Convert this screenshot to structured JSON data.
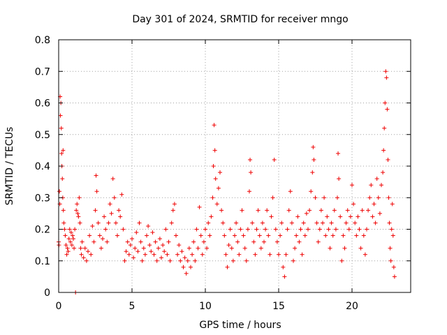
{
  "chart_data": {
    "type": "scatter",
    "title": "Day 301 of 2024, SRMTID for receiver mngo",
    "xlabel": "GPS time / hours",
    "ylabel": "SRMTID / TECUs",
    "xlim": [
      0,
      24
    ],
    "ylim": [
      0,
      0.8
    ],
    "x_ticks": [
      0,
      5,
      10,
      15,
      20
    ],
    "x_tick_labels": [
      "0",
      "5",
      "10",
      "15",
      "20"
    ],
    "y_ticks": [
      0,
      0.1,
      0.2,
      0.3,
      0.4,
      0.5,
      0.6,
      0.7,
      0.8
    ],
    "y_tick_labels": [
      "0",
      "0.1",
      "0.2",
      "0.3",
      "0.4",
      "0.5",
      "0.6",
      "0.7",
      "0.8"
    ],
    "grid": true,
    "marker": "+",
    "color": "#ee0000",
    "series": [
      {
        "name": "SRMTID",
        "points": [
          [
            0.0,
            0.16
          ],
          [
            0.02,
            0.15
          ],
          [
            0.05,
            0.32
          ],
          [
            0.08,
            0.28
          ],
          [
            0.1,
            0.62
          ],
          [
            0.12,
            0.56
          ],
          [
            0.15,
            0.6
          ],
          [
            0.18,
            0.52
          ],
          [
            0.2,
            0.44
          ],
          [
            0.22,
            0.4
          ],
          [
            0.25,
            0.36
          ],
          [
            0.28,
            0.3
          ],
          [
            0.3,
            0.45
          ],
          [
            0.32,
            0.26
          ],
          [
            0.35,
            0.22
          ],
          [
            0.4,
            0.2
          ],
          [
            0.45,
            0.18
          ],
          [
            0.5,
            0.15
          ],
          [
            0.55,
            0.12
          ],
          [
            0.6,
            0.14
          ],
          [
            0.65,
            0.13
          ],
          [
            0.7,
            0.17
          ],
          [
            0.75,
            0.2
          ],
          [
            0.8,
            0.16
          ],
          [
            0.85,
            0.19
          ],
          [
            0.9,
            0.15
          ],
          [
            0.95,
            0.18
          ],
          [
            1.0,
            0.17
          ],
          [
            1.05,
            0.14
          ],
          [
            1.1,
            0.2
          ],
          [
            1.15,
            0.0
          ],
          [
            1.2,
            0.26
          ],
          [
            1.25,
            0.28
          ],
          [
            1.3,
            0.25
          ],
          [
            1.35,
            0.24
          ],
          [
            1.4,
            0.3
          ],
          [
            1.45,
            0.22
          ],
          [
            1.5,
            0.14
          ],
          [
            1.55,
            0.12
          ],
          [
            1.6,
            0.16
          ],
          [
            1.7,
            0.11
          ],
          [
            1.8,
            0.14
          ],
          [
            1.9,
            0.1
          ],
          [
            2.0,
            0.13
          ],
          [
            2.1,
            0.18
          ],
          [
            2.2,
            0.12
          ],
          [
            2.3,
            0.21
          ],
          [
            2.4,
            0.16
          ],
          [
            2.5,
            0.26
          ],
          [
            2.55,
            0.37
          ],
          [
            2.6,
            0.32
          ],
          [
            2.7,
            0.22
          ],
          [
            2.8,
            0.18
          ],
          [
            2.9,
            0.14
          ],
          [
            3.0,
            0.17
          ],
          [
            3.1,
            0.24
          ],
          [
            3.2,
            0.2
          ],
          [
            3.3,
            0.16
          ],
          [
            3.4,
            0.22
          ],
          [
            3.5,
            0.28
          ],
          [
            3.6,
            0.25
          ],
          [
            3.7,
            0.36
          ],
          [
            3.8,
            0.3
          ],
          [
            3.9,
            0.22
          ],
          [
            4.0,
            0.18
          ],
          [
            4.1,
            0.26
          ],
          [
            4.2,
            0.24
          ],
          [
            4.3,
            0.31
          ],
          [
            4.4,
            0.2
          ],
          [
            4.5,
            0.1
          ],
          [
            4.6,
            0.13
          ],
          [
            4.7,
            0.16
          ],
          [
            4.8,
            0.12
          ],
          [
            4.9,
            0.15
          ],
          [
            5.0,
            0.17
          ],
          [
            5.1,
            0.11
          ],
          [
            5.2,
            0.14
          ],
          [
            5.3,
            0.19
          ],
          [
            5.4,
            0.13
          ],
          [
            5.5,
            0.22
          ],
          [
            5.6,
            0.16
          ],
          [
            5.7,
            0.1
          ],
          [
            5.8,
            0.14
          ],
          [
            5.9,
            0.12
          ],
          [
            6.0,
            0.18
          ],
          [
            6.1,
            0.21
          ],
          [
            6.2,
            0.15
          ],
          [
            6.3,
            0.13
          ],
          [
            6.4,
            0.19
          ],
          [
            6.5,
            0.12
          ],
          [
            6.6,
            0.16
          ],
          [
            6.7,
            0.1
          ],
          [
            6.8,
            0.14
          ],
          [
            6.9,
            0.17
          ],
          [
            7.0,
            0.11
          ],
          [
            7.1,
            0.15
          ],
          [
            7.2,
            0.13
          ],
          [
            7.3,
            0.2
          ],
          [
            7.4,
            0.12
          ],
          [
            7.5,
            0.16
          ],
          [
            7.6,
            0.1
          ],
          [
            7.7,
            0.22
          ],
          [
            7.8,
            0.26
          ],
          [
            7.9,
            0.28
          ],
          [
            8.0,
            0.18
          ],
          [
            8.1,
            0.12
          ],
          [
            8.2,
            0.15
          ],
          [
            8.3,
            0.1
          ],
          [
            8.4,
            0.13
          ],
          [
            8.5,
            0.08
          ],
          [
            8.6,
            0.11
          ],
          [
            8.7,
            0.06
          ],
          [
            8.8,
            0.1
          ],
          [
            8.9,
            0.14
          ],
          [
            9.0,
            0.08
          ],
          [
            9.1,
            0.12
          ],
          [
            9.2,
            0.16
          ],
          [
            9.3,
            0.1
          ],
          [
            9.4,
            0.2
          ],
          [
            9.5,
            0.14
          ],
          [
            9.6,
            0.27
          ],
          [
            9.7,
            0.18
          ],
          [
            9.8,
            0.12
          ],
          [
            9.9,
            0.16
          ],
          [
            10.0,
            0.2
          ],
          [
            10.1,
            0.14
          ],
          [
            10.2,
            0.22
          ],
          [
            10.3,
            0.18
          ],
          [
            10.4,
            0.24
          ],
          [
            10.5,
            0.3
          ],
          [
            10.55,
            0.4
          ],
          [
            10.6,
            0.53
          ],
          [
            10.65,
            0.45
          ],
          [
            10.7,
            0.36
          ],
          [
            10.8,
            0.28
          ],
          [
            10.9,
            0.33
          ],
          [
            11.0,
            0.38
          ],
          [
            11.1,
            0.26
          ],
          [
            11.2,
            0.22
          ],
          [
            11.3,
            0.18
          ],
          [
            11.4,
            0.12
          ],
          [
            11.5,
            0.08
          ],
          [
            11.6,
            0.15
          ],
          [
            11.7,
            0.2
          ],
          [
            11.8,
            0.14
          ],
          [
            11.9,
            0.1
          ],
          [
            12.0,
            0.18
          ],
          [
            12.1,
            0.22
          ],
          [
            12.2,
            0.16
          ],
          [
            12.3,
            0.12
          ],
          [
            12.4,
            0.2
          ],
          [
            12.5,
            0.26
          ],
          [
            12.6,
            0.18
          ],
          [
            12.7,
            0.14
          ],
          [
            12.8,
            0.1
          ],
          [
            12.9,
            0.2
          ],
          [
            13.0,
            0.32
          ],
          [
            13.05,
            0.42
          ],
          [
            13.1,
            0.38
          ],
          [
            13.2,
            0.22
          ],
          [
            13.3,
            0.16
          ],
          [
            13.4,
            0.12
          ],
          [
            13.5,
            0.2
          ],
          [
            13.6,
            0.26
          ],
          [
            13.7,
            0.18
          ],
          [
            13.8,
            0.14
          ],
          [
            13.9,
            0.22
          ],
          [
            14.0,
            0.16
          ],
          [
            14.1,
            0.2
          ],
          [
            14.2,
            0.26
          ],
          [
            14.3,
            0.18
          ],
          [
            14.4,
            0.12
          ],
          [
            14.5,
            0.24
          ],
          [
            14.6,
            0.3
          ],
          [
            14.7,
            0.42
          ],
          [
            14.8,
            0.2
          ],
          [
            14.9,
            0.16
          ],
          [
            15.0,
            0.12
          ],
          [
            15.1,
            0.18
          ],
          [
            15.2,
            0.22
          ],
          [
            15.3,
            0.08
          ],
          [
            15.4,
            0.05
          ],
          [
            15.5,
            0.12
          ],
          [
            15.6,
            0.2
          ],
          [
            15.7,
            0.26
          ],
          [
            15.8,
            0.32
          ],
          [
            15.9,
            0.22
          ],
          [
            16.0,
            0.1
          ],
          [
            16.1,
            0.14
          ],
          [
            16.2,
            0.18
          ],
          [
            16.3,
            0.24
          ],
          [
            16.4,
            0.16
          ],
          [
            16.5,
            0.2
          ],
          [
            16.6,
            0.12
          ],
          [
            16.7,
            0.22
          ],
          [
            16.8,
            0.18
          ],
          [
            16.9,
            0.25
          ],
          [
            17.0,
            0.2
          ],
          [
            17.1,
            0.26
          ],
          [
            17.2,
            0.32
          ],
          [
            17.3,
            0.38
          ],
          [
            17.35,
            0.46
          ],
          [
            17.4,
            0.42
          ],
          [
            17.5,
            0.3
          ],
          [
            17.6,
            0.22
          ],
          [
            17.7,
            0.16
          ],
          [
            17.8,
            0.2
          ],
          [
            17.9,
            0.26
          ],
          [
            18.0,
            0.22
          ],
          [
            18.1,
            0.3
          ],
          [
            18.2,
            0.18
          ],
          [
            18.3,
            0.24
          ],
          [
            18.4,
            0.2
          ],
          [
            18.5,
            0.14
          ],
          [
            18.6,
            0.22
          ],
          [
            18.7,
            0.18
          ],
          [
            18.8,
            0.26
          ],
          [
            18.9,
            0.2
          ],
          [
            19.0,
            0.3
          ],
          [
            19.05,
            0.44
          ],
          [
            19.1,
            0.36
          ],
          [
            19.2,
            0.24
          ],
          [
            19.3,
            0.1
          ],
          [
            19.4,
            0.18
          ],
          [
            19.5,
            0.14
          ],
          [
            19.6,
            0.22
          ],
          [
            19.7,
            0.26
          ],
          [
            19.8,
            0.2
          ],
          [
            19.9,
            0.24
          ],
          [
            20.0,
            0.34
          ],
          [
            20.1,
            0.28
          ],
          [
            20.2,
            0.22
          ],
          [
            20.3,
            0.18
          ],
          [
            20.4,
            0.24
          ],
          [
            20.5,
            0.2
          ],
          [
            20.6,
            0.14
          ],
          [
            20.7,
            0.26
          ],
          [
            20.8,
            0.18
          ],
          [
            20.9,
            0.12
          ],
          [
            21.0,
            0.2
          ],
          [
            21.1,
            0.26
          ],
          [
            21.2,
            0.3
          ],
          [
            21.3,
            0.34
          ],
          [
            21.4,
            0.24
          ],
          [
            21.5,
            0.28
          ],
          [
            21.6,
            0.22
          ],
          [
            21.7,
            0.36
          ],
          [
            21.8,
            0.3
          ],
          [
            21.9,
            0.25
          ],
          [
            22.0,
            0.34
          ],
          [
            22.1,
            0.38
          ],
          [
            22.15,
            0.45
          ],
          [
            22.2,
            0.52
          ],
          [
            22.25,
            0.6
          ],
          [
            22.3,
            0.7
          ],
          [
            22.35,
            0.68
          ],
          [
            22.4,
            0.58
          ],
          [
            22.45,
            0.42
          ],
          [
            22.5,
            0.3
          ],
          [
            22.55,
            0.22
          ],
          [
            22.6,
            0.14
          ],
          [
            22.65,
            0.1
          ],
          [
            22.7,
            0.2
          ],
          [
            22.75,
            0.28
          ],
          [
            22.8,
            0.18
          ],
          [
            22.85,
            0.08
          ],
          [
            22.9,
            0.05
          ]
        ]
      }
    ]
  }
}
